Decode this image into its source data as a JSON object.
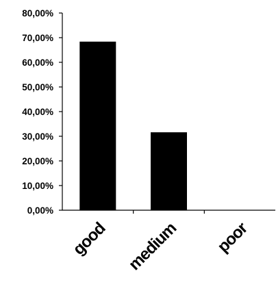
{
  "chart_data": {
    "type": "bar",
    "title": "",
    "xlabel": "",
    "ylabel": "",
    "categories": [
      "good",
      "medium",
      "poor"
    ],
    "values": [
      68.4,
      31.6,
      0
    ],
    "value_format": "percent_comma_2dp",
    "ylim": [
      0,
      80
    ],
    "yticks": [
      0,
      10,
      20,
      30,
      40,
      50,
      60,
      70,
      80
    ],
    "ytick_labels": [
      "0,00%",
      "10,00%",
      "20,00%",
      "30,00%",
      "40,00%",
      "50,00%",
      "60,00%",
      "70,00%",
      "80,00%"
    ],
    "bar_color": "#000000",
    "grid": false,
    "legend": "none",
    "xtick_rotation_deg": -45
  }
}
